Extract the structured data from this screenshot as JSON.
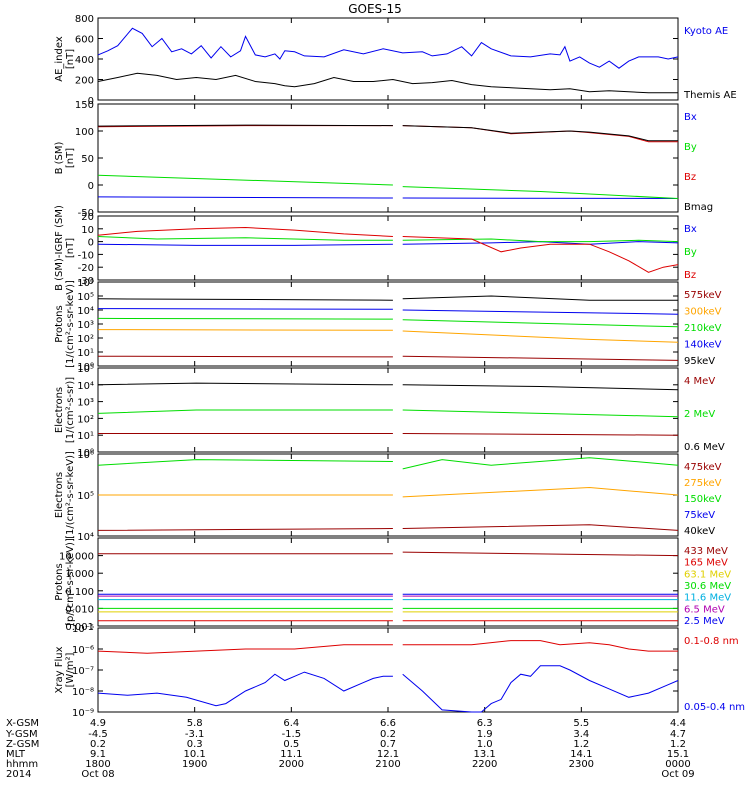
{
  "title": "GOES-15",
  "colors": {
    "black": "#000000",
    "blue": "#0000ee",
    "green": "#00dd00",
    "red": "#dd0000",
    "orange": "#ffa500",
    "yellow": "#e0d000",
    "cyan": "#00b0e0",
    "purple": "#8000a0",
    "darkred": "#990000",
    "magenta": "#b000b0"
  },
  "chart_data": [
    {
      "type": "line",
      "id": "ae",
      "ylabel": "AE_index\n[nT]",
      "ylim": [
        0,
        800
      ],
      "yticks": [
        "800",
        "600",
        "400",
        "200",
        "0"
      ],
      "series": [
        {
          "name": "Kyoto AE",
          "color": "blue",
          "x": [
            0,
            10,
            20,
            28,
            35,
            45,
            55,
            65,
            75,
            85,
            95,
            105,
            115,
            125,
            135,
            145,
            150,
            160,
            170,
            180,
            185,
            190,
            200,
            210,
            230,
            250,
            270,
            290,
            310,
            330,
            340,
            355,
            370,
            380,
            390,
            400,
            420,
            440,
            460,
            470,
            475,
            480,
            490,
            500,
            510,
            520,
            530,
            540,
            550,
            560,
            570,
            580,
            590
          ],
          "y": [
            440,
            480,
            530,
            620,
            700,
            650,
            520,
            600,
            470,
            500,
            450,
            530,
            410,
            520,
            420,
            480,
            620,
            440,
            420,
            450,
            400,
            480,
            470,
            430,
            420,
            490,
            450,
            500,
            460,
            470,
            430,
            450,
            520,
            430,
            560,
            500,
            430,
            420,
            450,
            440,
            520,
            380,
            420,
            360,
            320,
            380,
            310,
            380,
            420,
            420,
            420,
            400,
            420
          ]
        },
        {
          "name": "Themis AE",
          "color": "black",
          "x": [
            0,
            20,
            40,
            60,
            80,
            100,
            120,
            140,
            160,
            180,
            190,
            200,
            220,
            240,
            260,
            280,
            300,
            320,
            340,
            360,
            380,
            400,
            420,
            440,
            460,
            480,
            500,
            520,
            540,
            560,
            580,
            590
          ],
          "y": [
            180,
            220,
            260,
            240,
            200,
            220,
            200,
            240,
            180,
            160,
            140,
            130,
            160,
            220,
            180,
            180,
            200,
            160,
            170,
            190,
            150,
            130,
            120,
            110,
            100,
            110,
            80,
            90,
            80,
            70,
            70,
            70
          ]
        }
      ]
    },
    {
      "type": "line",
      "id": "b",
      "ylabel": "B (SM)\n[nT]",
      "ylim": [
        -50,
        150
      ],
      "yticks": [
        "150",
        "100",
        "50",
        "0",
        "-50"
      ],
      "series": [
        {
          "name": "Bx",
          "color": "blue",
          "x": [
            0,
            300,
            310,
            590
          ],
          "y": [
            -22,
            -24,
            -24,
            -25
          ],
          "gap": [
            300,
            310
          ]
        },
        {
          "name": "By",
          "color": "green",
          "x": [
            0,
            300,
            310,
            450,
            590
          ],
          "y": [
            18,
            0,
            -3,
            -12,
            -25
          ],
          "gap": [
            300,
            310
          ]
        },
        {
          "name": "Bz",
          "color": "red",
          "x": [
            0,
            150,
            300,
            310,
            380,
            420,
            480,
            500,
            540,
            560,
            590
          ],
          "y": [
            108,
            110,
            110,
            110,
            106,
            95,
            100,
            97,
            90,
            80,
            80
          ],
          "gap": [
            300,
            310
          ]
        },
        {
          "name": "Bmag",
          "color": "black",
          "x": [
            0,
            150,
            300,
            310,
            380,
            420,
            480,
            500,
            540,
            560,
            590
          ],
          "y": [
            109,
            111,
            110,
            110,
            106,
            96,
            100,
            98,
            91,
            82,
            82
          ],
          "gap": [
            300,
            310
          ]
        }
      ]
    },
    {
      "type": "line",
      "id": "db",
      "ylabel": "B (SM)-IGRF (SM)\n[nT]",
      "ylim": [
        -30,
        20
      ],
      "yticks": [
        "20",
        "10",
        "0",
        "-10",
        "-20",
        "-30"
      ],
      "series": [
        {
          "name": "Bx",
          "color": "blue",
          "x": [
            0,
            100,
            200,
            300,
            310,
            400,
            450,
            500,
            550,
            590
          ],
          "y": [
            -2,
            -3,
            -3,
            -2,
            -2,
            -1,
            0,
            -2,
            0,
            -1
          ],
          "gap": [
            300,
            310
          ]
        },
        {
          "name": "By",
          "color": "green",
          "x": [
            0,
            60,
            150,
            250,
            300,
            310,
            400,
            450,
            500,
            550,
            590
          ],
          "y": [
            4,
            2,
            3,
            1,
            1,
            1,
            2,
            0,
            0,
            1,
            0
          ],
          "gap": [
            300,
            310
          ]
        },
        {
          "name": "Bz",
          "color": "red",
          "x": [
            0,
            40,
            100,
            150,
            200,
            250,
            300,
            310,
            380,
            410,
            430,
            460,
            500,
            520,
            540,
            560,
            575,
            590
          ],
          "y": [
            5,
            8,
            10,
            11,
            9,
            6,
            4,
            4,
            2,
            -8,
            -5,
            -2,
            -2,
            -8,
            -15,
            -24,
            -20,
            -18
          ],
          "gap": [
            300,
            310
          ]
        }
      ]
    },
    {
      "type": "line",
      "id": "protons",
      "ylabel": "Protons\n[1/(cm²-s-sr-keV)]",
      "yscale": "log",
      "ylim": [
        0,
        6
      ],
      "yticks": [
        "10⁶",
        "10⁵",
        "10⁴",
        "10³",
        "10²",
        "10¹",
        "10⁰"
      ],
      "series": [
        {
          "name": "575keV",
          "color": "darkred",
          "x": [
            0,
            300,
            310,
            590
          ],
          "y": [
            0.7,
            0.65,
            0.7,
            0.4
          ],
          "gap": [
            300,
            310
          ]
        },
        {
          "name": "300keV",
          "color": "orange",
          "x": [
            0,
            300,
            310,
            500,
            590
          ],
          "y": [
            2.6,
            2.55,
            2.5,
            1.9,
            1.7
          ],
          "gap": [
            300,
            310
          ]
        },
        {
          "name": "210keV",
          "color": "green",
          "x": [
            0,
            300,
            310,
            590
          ],
          "y": [
            3.4,
            3.35,
            3.3,
            2.8
          ],
          "gap": [
            300,
            310
          ]
        },
        {
          "name": "140keV",
          "color": "blue",
          "x": [
            0,
            300,
            310,
            590
          ],
          "y": [
            4.1,
            4.05,
            4.0,
            3.7
          ],
          "gap": [
            300,
            310
          ]
        },
        {
          "name": "95keV",
          "color": "black",
          "x": [
            0,
            300,
            310,
            400,
            500,
            590
          ],
          "y": [
            4.8,
            4.7,
            4.8,
            5.0,
            4.7,
            4.7
          ],
          "gap": [
            300,
            310
          ]
        }
      ]
    },
    {
      "type": "line",
      "id": "electrons_mev",
      "ylabel": "Electrons\n[1/(cm²-s-sr)]",
      "yscale": "log",
      "ylim": [
        0,
        5
      ],
      "yticks": [
        "10⁵",
        "10⁴",
        "10³",
        "10²",
        "10¹",
        "10⁰"
      ],
      "series": [
        {
          "name": "4 MeV",
          "color": "darkred",
          "x": [
            0,
            300,
            310,
            590
          ],
          "y": [
            1.1,
            1.1,
            1.1,
            1.0
          ],
          "gap": [
            300,
            310
          ]
        },
        {
          "name": "2 MeV",
          "color": "green",
          "x": [
            0,
            100,
            300,
            310,
            450,
            590
          ],
          "y": [
            2.3,
            2.5,
            2.5,
            2.5,
            2.3,
            2.1
          ],
          "gap": [
            300,
            310
          ]
        },
        {
          "name": "0.6 MeV",
          "color": "black",
          "x": [
            0,
            100,
            300,
            310,
            450,
            590
          ],
          "y": [
            4.0,
            4.1,
            4.0,
            4.0,
            3.9,
            3.7
          ],
          "gap": [
            300,
            310
          ]
        }
      ]
    },
    {
      "type": "line",
      "id": "electrons_kev",
      "ylabel": "Electrons\n[1/(cm²-s-sr-keV)]",
      "yscale": "log",
      "ylim": [
        3.8,
        6
      ],
      "yticks": [
        "10⁶",
        "10⁵",
        "10⁴"
      ],
      "series": [
        {
          "name": "475keV",
          "color": "darkred",
          "x": [
            0,
            300,
            310,
            500,
            590
          ],
          "y": [
            3.95,
            4.0,
            4.0,
            4.1,
            3.95
          ],
          "gap": [
            300,
            310
          ]
        },
        {
          "name": "275keV",
          "color": "orange",
          "x": [
            0,
            300,
            310,
            500,
            590
          ],
          "y": [
            4.9,
            4.9,
            4.85,
            5.1,
            4.9
          ],
          "gap": [
            300,
            310
          ]
        },
        {
          "name": "150keV",
          "color": "green",
          "x": [
            0,
            100,
            300,
            310,
            350,
            400,
            500,
            590
          ],
          "y": [
            5.7,
            5.85,
            5.8,
            5.6,
            5.85,
            5.7,
            5.9,
            5.7
          ],
          "gap": [
            300,
            310
          ]
        },
        {
          "name": "75keV",
          "color": "blue",
          "x": [],
          "y": []
        },
        {
          "name": "40keV",
          "color": "black",
          "x": [],
          "y": []
        }
      ]
    },
    {
      "type": "line",
      "id": "protons_mev",
      "ylabel": "Protons\n[p/(cm²-s-sr-keV)]",
      "yscale": "log",
      "ylim": [
        -3,
        2
      ],
      "yticks": [
        "10.000",
        "1.000",
        "0.100",
        "0.010",
        "0.001"
      ],
      "ytick_values": [
        1,
        0,
        -1,
        -2,
        -3
      ],
      "series": [
        {
          "name": "433 MeV",
          "color": "darkred",
          "x": [
            0,
            300,
            310,
            590
          ],
          "y": [
            1.1,
            1.1,
            1.2,
            1.0
          ],
          "gap": [
            300,
            310
          ]
        },
        {
          "name": "165 MeV",
          "color": "red",
          "x": [
            0,
            300,
            310,
            590
          ],
          "y": [
            -2.7,
            -2.7,
            -2.7,
            -2.7
          ],
          "gap": [
            300,
            310
          ]
        },
        {
          "name": "63.1 MeV",
          "color": "yellow",
          "x": [
            0,
            300,
            310,
            590
          ],
          "y": [
            -2.2,
            -2.2,
            -2.2,
            -2.2
          ],
          "gap": [
            300,
            310
          ]
        },
        {
          "name": "30.6 MeV",
          "color": "green",
          "x": [
            0,
            300,
            310,
            590
          ],
          "y": [
            -2.0,
            -2.0,
            -2.0,
            -2.0
          ],
          "gap": [
            300,
            310
          ]
        },
        {
          "name": "11.6 MeV",
          "color": "cyan",
          "x": [
            0,
            300,
            310,
            590
          ],
          "y": [
            -1.5,
            -1.5,
            -1.5,
            -1.5
          ],
          "gap": [
            300,
            310
          ]
        },
        {
          "name": "6.5 MeV",
          "color": "magenta",
          "x": [
            0,
            300,
            310,
            590
          ],
          "y": [
            -1.3,
            -1.3,
            -1.3,
            -1.3
          ],
          "gap": [
            300,
            310
          ]
        },
        {
          "name": "2.5 MeV",
          "color": "blue",
          "x": [
            0,
            300,
            310,
            590
          ],
          "y": [
            -1.2,
            -1.2,
            -1.2,
            -1.2
          ],
          "gap": [
            300,
            310
          ]
        }
      ]
    },
    {
      "type": "line",
      "id": "xray",
      "ylabel": "Xray Flux\n[W/m²]",
      "yscale": "log",
      "ylim": [
        -9,
        -5
      ],
      "yticks": [
        "10⁻⁵",
        "10⁻⁶",
        "10⁻⁷",
        "10⁻⁸",
        "10⁻⁹"
      ],
      "series": [
        {
          "name": "0.1-0.8 nm",
          "color": "red",
          "x": [
            0,
            50,
            100,
            150,
            200,
            250,
            280,
            300,
            310,
            380,
            420,
            440,
            450,
            470,
            500,
            520,
            540,
            560,
            590
          ],
          "y": [
            -6.1,
            -6.2,
            -6.1,
            -6.0,
            -6.0,
            -5.8,
            -5.8,
            -5.8,
            -5.8,
            -5.8,
            -5.6,
            -5.6,
            -5.6,
            -5.8,
            -5.7,
            -5.8,
            -6.0,
            -6.1,
            -6.1
          ],
          "gap": [
            300,
            310
          ]
        },
        {
          "name": "0.05-0.4 nm",
          "color": "blue",
          "x": [
            0,
            30,
            60,
            90,
            120,
            130,
            150,
            170,
            180,
            190,
            200,
            210,
            230,
            250,
            270,
            280,
            290,
            300,
            310,
            330,
            350,
            380,
            390,
            400,
            410,
            420,
            430,
            440,
            450,
            470,
            480,
            500,
            520,
            540,
            560,
            580,
            590
          ],
          "y": [
            -8.1,
            -8.2,
            -8.1,
            -8.3,
            -8.7,
            -8.6,
            -8.0,
            -7.6,
            -7.2,
            -7.5,
            -7.3,
            -7.1,
            -7.4,
            -8.0,
            -7.6,
            -7.4,
            -7.3,
            -7.3,
            -7.2,
            -8.0,
            -8.9,
            -9.0,
            -9.0,
            -8.6,
            -8.4,
            -7.6,
            -7.2,
            -7.3,
            -6.8,
            -6.8,
            -7.0,
            -7.5,
            -7.9,
            -8.3,
            -8.1,
            -7.7,
            -7.5
          ],
          "gap": [
            300,
            310
          ]
        }
      ]
    }
  ],
  "xaxis": {
    "row_labels": [
      "X-GSM",
      "Y-GSM",
      "Z-GSM",
      "MLT",
      "hhmm",
      "2014"
    ],
    "columns": [
      {
        "values": [
          "4.9",
          "-4.5",
          "0.2",
          "9.1",
          "1800",
          "Oct 08"
        ]
      },
      {
        "values": [
          "5.8",
          "-3.1",
          "0.3",
          "10.1",
          "1900",
          ""
        ]
      },
      {
        "values": [
          "6.4",
          "-1.5",
          "0.5",
          "11.1",
          "2000",
          ""
        ]
      },
      {
        "values": [
          "6.6",
          "0.2",
          "0.7",
          "12.1",
          "2100",
          ""
        ]
      },
      {
        "values": [
          "6.3",
          "1.9",
          "1.0",
          "13.1",
          "2200",
          ""
        ]
      },
      {
        "values": [
          "5.5",
          "3.4",
          "1.2",
          "14.1",
          "2300",
          ""
        ]
      },
      {
        "values": [
          "4.4",
          "4.7",
          "1.2",
          "15.1",
          "0000",
          "Oct 09"
        ]
      }
    ]
  }
}
